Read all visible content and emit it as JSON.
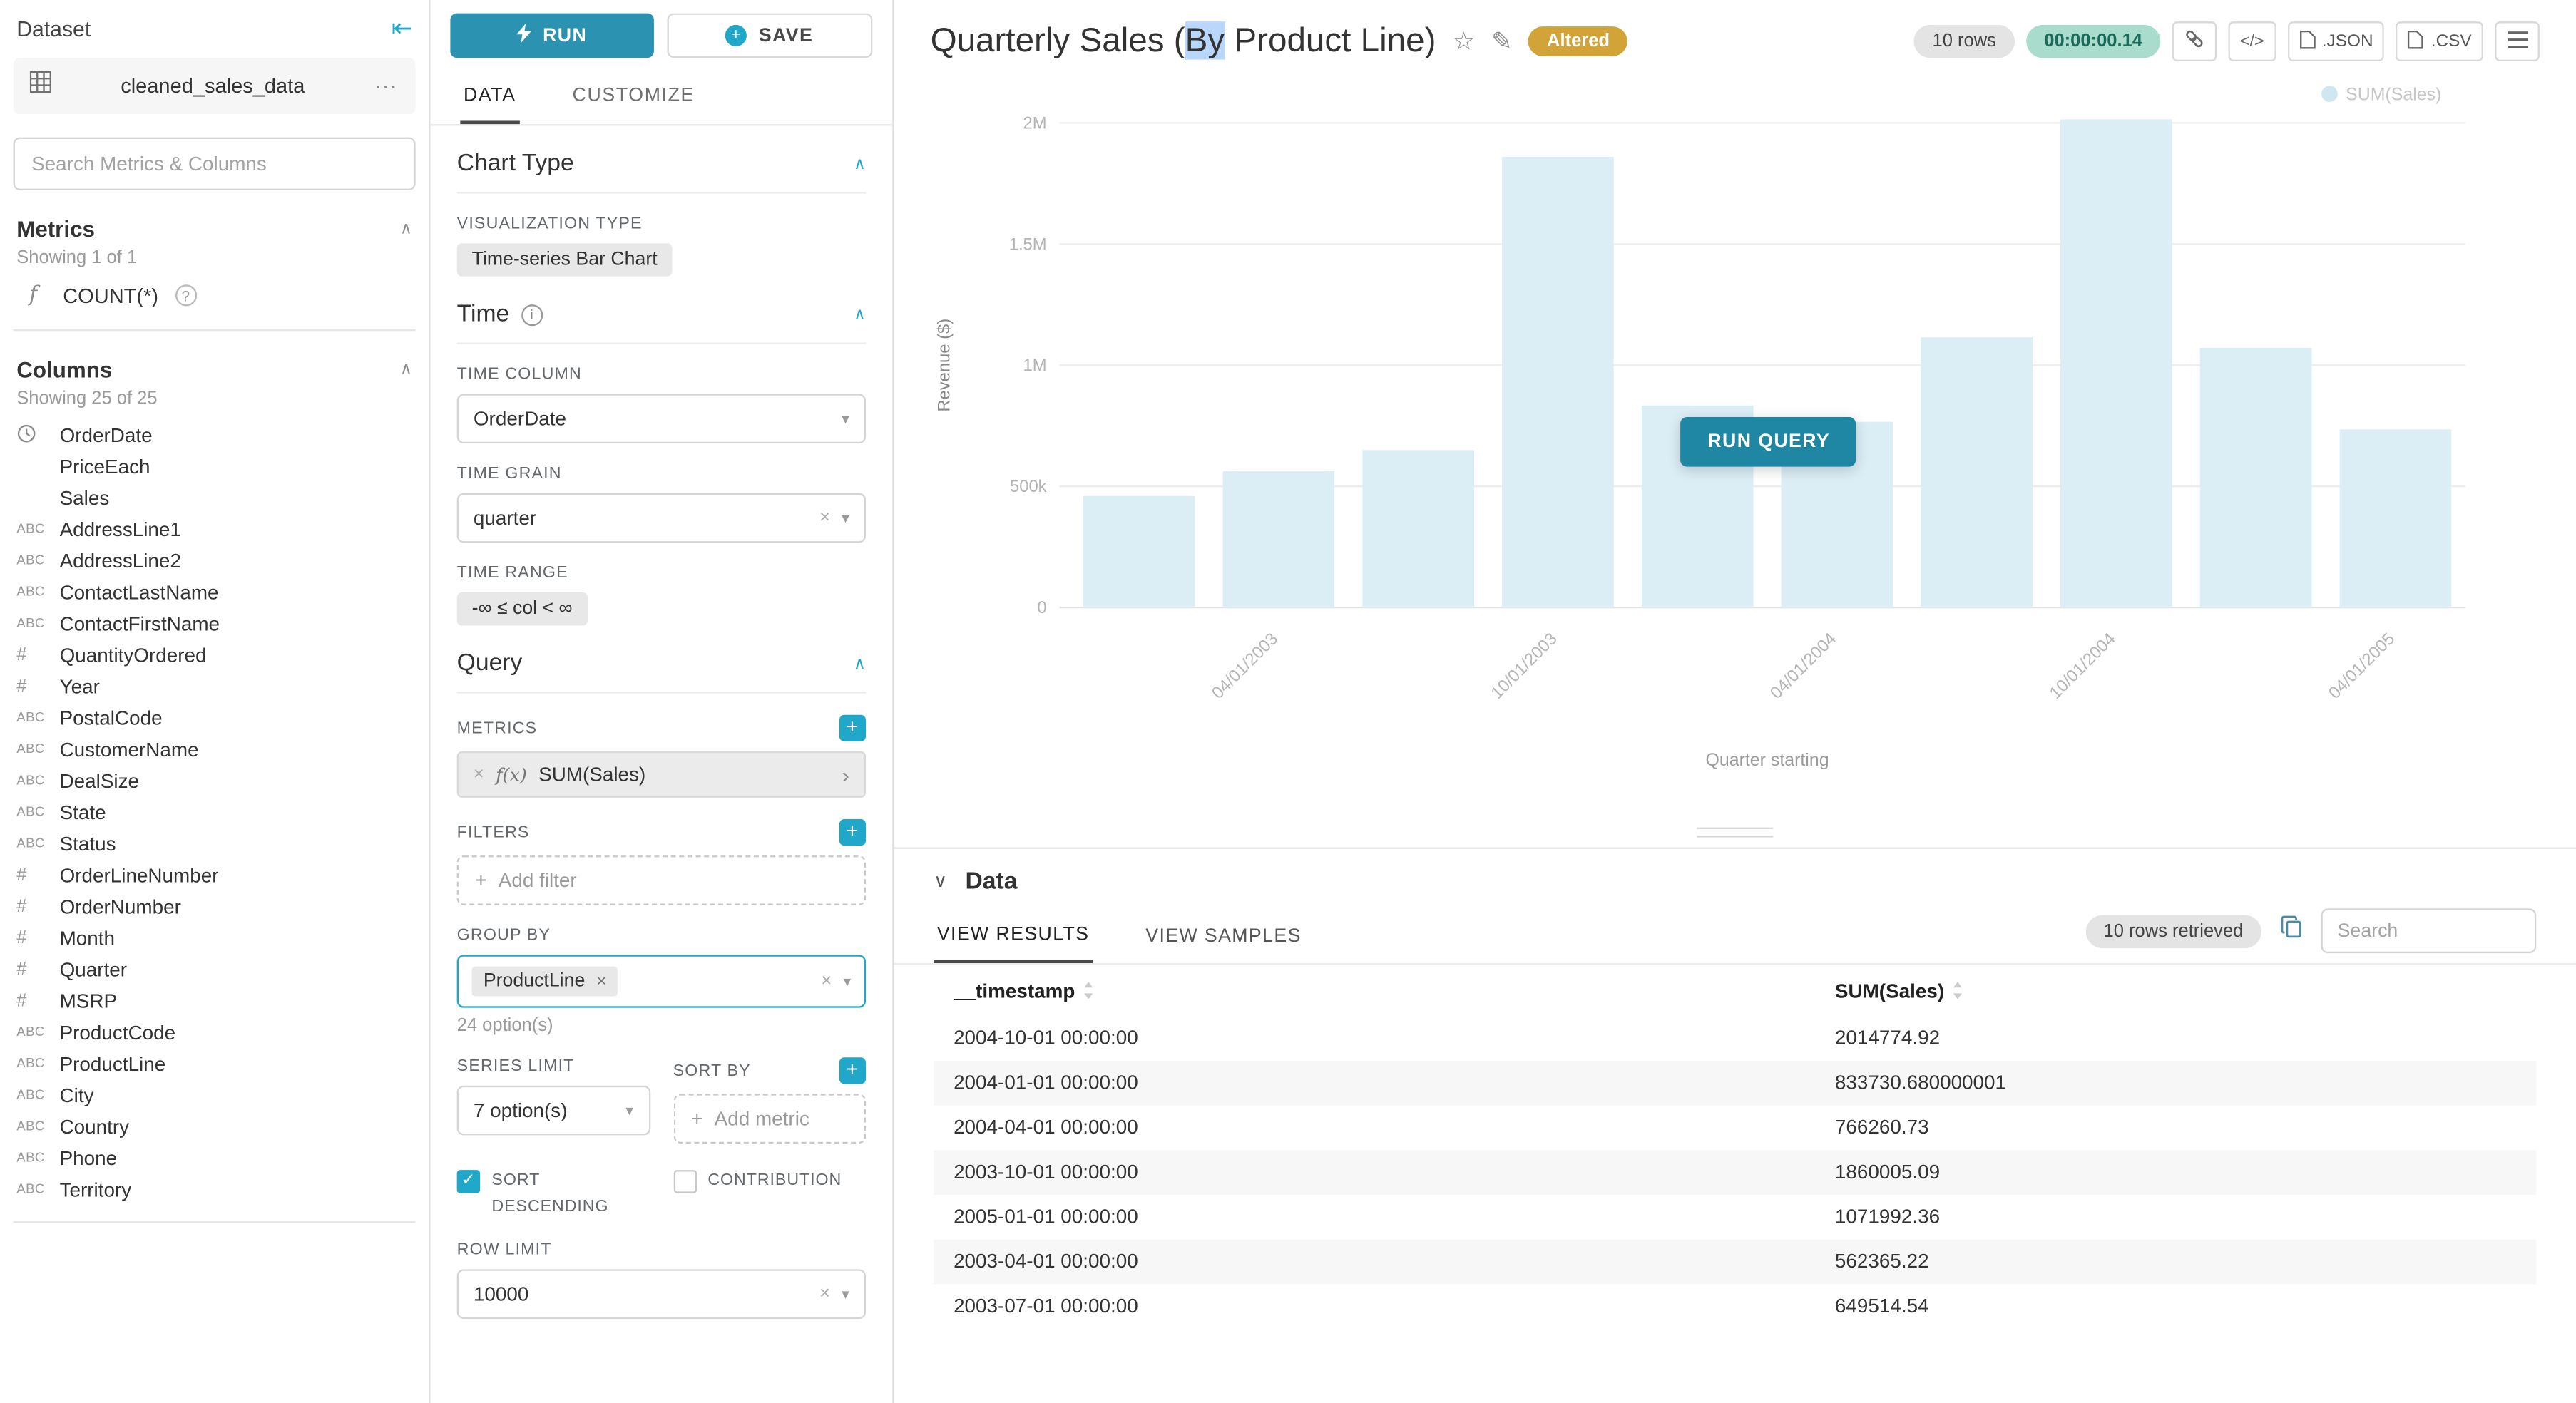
{
  "colors": {
    "accent": "#20a7c9",
    "run_button": "#2b93b1",
    "run_query_button": "#1f87a3",
    "bar": "#dbedf5",
    "altered_badge": "#d2a437",
    "timer_bg": "#a9dccd",
    "timer_text": "#1a6b5c",
    "selection_highlight": "#b8d7fb"
  },
  "dataset_panel": {
    "title": "Dataset",
    "dataset_name": "cleaned_sales_data",
    "search_placeholder": "Search Metrics & Columns",
    "metrics_title": "Metrics",
    "metrics_showing": "Showing 1 of 1",
    "metric_items": [
      {
        "label": "COUNT(*)"
      }
    ],
    "columns_title": "Columns",
    "columns_showing": "Showing 25 of 25",
    "columns": [
      {
        "type": "time",
        "label": "OrderDate"
      },
      {
        "type": "none",
        "label": "PriceEach"
      },
      {
        "type": "none",
        "label": "Sales"
      },
      {
        "type": "text",
        "label": "AddressLine1"
      },
      {
        "type": "text",
        "label": "AddressLine2"
      },
      {
        "type": "text",
        "label": "ContactLastName"
      },
      {
        "type": "text",
        "label": "ContactFirstName"
      },
      {
        "type": "num",
        "label": "QuantityOrdered"
      },
      {
        "type": "num",
        "label": "Year"
      },
      {
        "type": "text",
        "label": "PostalCode"
      },
      {
        "type": "text",
        "label": "CustomerName"
      },
      {
        "type": "text",
        "label": "DealSize"
      },
      {
        "type": "text",
        "label": "State"
      },
      {
        "type": "text",
        "label": "Status"
      },
      {
        "type": "num",
        "label": "OrderLineNumber"
      },
      {
        "type": "num",
        "label": "OrderNumber"
      },
      {
        "type": "num",
        "label": "Month"
      },
      {
        "type": "num",
        "label": "Quarter"
      },
      {
        "type": "num",
        "label": "MSRP"
      },
      {
        "type": "text",
        "label": "ProductCode"
      },
      {
        "type": "text",
        "label": "ProductLine"
      },
      {
        "type": "text",
        "label": "City"
      },
      {
        "type": "text",
        "label": "Country"
      },
      {
        "type": "text",
        "label": "Phone"
      },
      {
        "type": "text",
        "label": "Territory"
      }
    ]
  },
  "control_panel": {
    "run_label": "RUN",
    "save_label": "SAVE",
    "tabs": [
      {
        "label": "DATA"
      },
      {
        "label": "CUSTOMIZE"
      }
    ],
    "chart_type": {
      "title": "Chart Type",
      "viz_label": "VISUALIZATION TYPE",
      "viz_value": "Time-series Bar Chart"
    },
    "time": {
      "title": "Time",
      "column_label": "TIME COLUMN",
      "column_value": "OrderDate",
      "grain_label": "TIME GRAIN",
      "grain_value": "quarter",
      "range_label": "TIME RANGE",
      "range_value": "-∞ ≤ col < ∞"
    },
    "query": {
      "title": "Query",
      "metrics_label": "METRICS",
      "metric_fx": "f(x)",
      "metric_value": "SUM(Sales)",
      "filters_label": "FILTERS",
      "add_filter": "Add filter",
      "group_by_label": "GROUP BY",
      "group_by_tag": "ProductLine",
      "group_by_options": "24 option(s)",
      "series_limit_label": "SERIES LIMIT",
      "series_limit_value": "7 option(s)",
      "sort_by_label": "SORT BY",
      "add_metric": "Add metric",
      "sort_descending_label": "SORT DESCENDING",
      "contribution_label": "CONTRIBUTION",
      "row_limit_label": "ROW LIMIT",
      "row_limit_value": "10000"
    }
  },
  "header": {
    "title_prefix": "Quarterly Sales (",
    "title_highlight": "By",
    "title_suffix": " Product Line)",
    "altered": "Altered",
    "rows_pill": "10 rows",
    "timer": "00:00:00.14",
    "json_label": ".JSON",
    "csv_label": ".CSV"
  },
  "chart": {
    "run_query": "RUN QUERY"
  },
  "chart_data": {
    "type": "bar",
    "title": "Quarterly Sales (By Product Line)",
    "x": [
      "2003-01-01",
      "2003-04-01",
      "2003-07-01",
      "2003-10-01",
      "2004-01-01",
      "2004-04-01",
      "2004-07-01",
      "2004-10-01",
      "2005-01-01",
      "2005-04-01"
    ],
    "series": [
      {
        "name": "SUM(Sales)",
        "values": [
          460000,
          562365.22,
          649514.54,
          1860005.09,
          833730.68,
          766260.73,
          1115000,
          2014774.92,
          1071992.36,
          735000
        ]
      }
    ],
    "xlabel": "Quarter starting",
    "ylabel": "Revenue ($)",
    "ylim": [
      0,
      2000000
    ],
    "ytick_values": [
      0,
      500000,
      1000000,
      1500000,
      2000000
    ],
    "yticks": [
      "0",
      "500k",
      "1M",
      "1.5M",
      "2M"
    ],
    "xticks": [
      "04/01/2003",
      "10/01/2003",
      "04/01/2004",
      "10/01/2004",
      "04/01/2005"
    ],
    "xtick_indices": [
      1,
      3,
      5,
      7,
      9
    ],
    "legend": [
      "SUM(Sales)"
    ],
    "legend_position": "top-right",
    "grid": true,
    "state": "stale-faded"
  },
  "data_section": {
    "title": "Data",
    "tabs": [
      {
        "label": "VIEW RESULTS"
      },
      {
        "label": "VIEW SAMPLES"
      }
    ],
    "rows_retrieved": "10 rows retrieved",
    "search_placeholder": "Search",
    "table": {
      "headers": [
        "__timestamp",
        "SUM(Sales)"
      ],
      "rows": [
        [
          "2004-10-01 00:00:00",
          "2014774.92"
        ],
        [
          "2004-01-01 00:00:00",
          "833730.680000001"
        ],
        [
          "2004-04-01 00:00:00",
          "766260.73"
        ],
        [
          "2003-10-01 00:00:00",
          "1860005.09"
        ],
        [
          "2005-01-01 00:00:00",
          "1071992.36"
        ],
        [
          "2003-04-01 00:00:00",
          "562365.22"
        ],
        [
          "2003-07-01 00:00:00",
          "649514.54"
        ]
      ]
    }
  }
}
